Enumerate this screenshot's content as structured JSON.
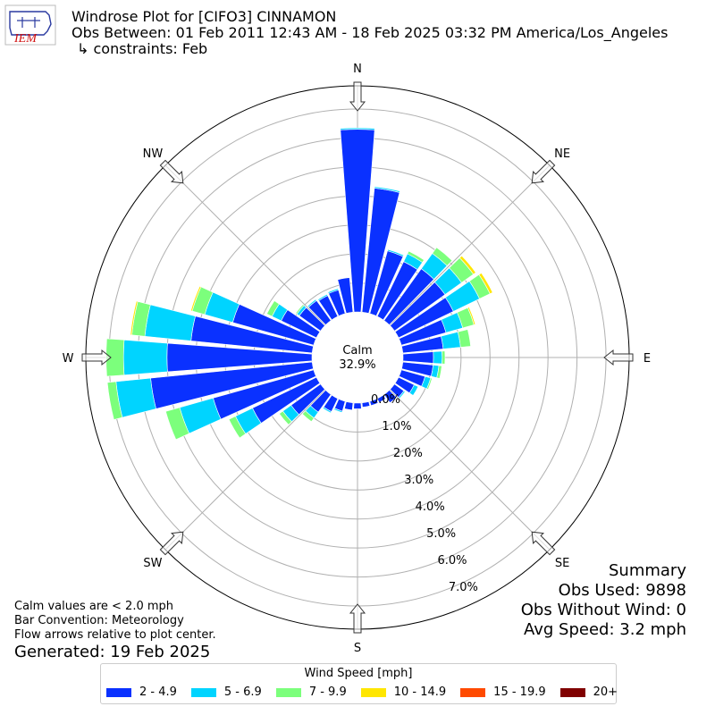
{
  "header": {
    "title": "Windrose Plot for [CIFO3] CINNAMON",
    "obs_between": "Obs Between: 01 Feb 2011 12:43 AM - 18 Feb 2025 03:32 PM America/Los_Angeles",
    "constraints": "↳ constraints: Feb",
    "logo_text": "IEM"
  },
  "calm": {
    "label": "Calm",
    "value": "32.9%"
  },
  "summary": {
    "title": "Summary",
    "obs_used": "Obs Used: 9898",
    "obs_without_wind": "Obs Without Wind: 0",
    "avg_speed": "Avg Speed: 3.2 mph"
  },
  "notes": {
    "calm_note": "Calm values are < 2.0 mph",
    "bar_convention": "Bar Convention: Meteorology",
    "flow_arrows": "Flow arrows relative to plot center.",
    "generated": "Generated: 19 Feb 2025"
  },
  "legend": {
    "title": "Wind Speed [mph]",
    "items": [
      {
        "label": "2 - 4.9",
        "color": "#0a31ff"
      },
      {
        "label": "5 - 6.9",
        "color": "#00d4ff"
      },
      {
        "label": "7 - 9.9",
        "color": "#7cff7c"
      },
      {
        "label": "10 - 14.9",
        "color": "#ffe600"
      },
      {
        "label": "15 - 19.9",
        "color": "#ff4a00"
      },
      {
        "label": "20+",
        "color": "#800000"
      }
    ]
  },
  "chart_data": {
    "type": "windrose",
    "units": "percent",
    "radial_ticks": [
      "0.0%",
      "1.0%",
      "2.0%",
      "3.0%",
      "4.0%",
      "5.0%",
      "6.0%",
      "7.0%"
    ],
    "rmax": 7.8,
    "compass_labels": [
      "N",
      "NE",
      "E",
      "SE",
      "S",
      "SW",
      "W",
      "NW"
    ],
    "bin_colors": [
      "#0a31ff",
      "#00d4ff",
      "#7cff7c",
      "#ffe600",
      "#ff4a00",
      "#800000"
    ],
    "bin_labels": [
      "2 - 4.9",
      "5 - 6.9",
      "7 - 9.9",
      "10 - 14.9",
      "15 - 19.9",
      "20+"
    ],
    "direction_step_deg": 10,
    "directions_deg": [
      0,
      10,
      20,
      30,
      40,
      50,
      60,
      70,
      80,
      90,
      100,
      110,
      120,
      130,
      140,
      150,
      160,
      170,
      180,
      190,
      200,
      210,
      220,
      230,
      240,
      250,
      260,
      270,
      280,
      290,
      300,
      310,
      320,
      330,
      340,
      350
    ],
    "cumulative": [
      [
        6.3,
        6.35,
        6.35,
        6.35,
        6.35,
        6.35
      ],
      [
        4.3,
        4.35,
        4.35,
        4.35,
        4.35,
        4.35
      ],
      [
        2.25,
        2.3,
        2.3,
        2.3,
        2.3,
        2.3
      ],
      [
        2.1,
        2.4,
        2.5,
        2.5,
        2.5,
        2.5
      ],
      [
        2.2,
        2.85,
        3.1,
        3.1,
        3.1,
        3.1
      ],
      [
        2.15,
        2.85,
        3.35,
        3.45,
        3.45,
        3.45
      ],
      [
        2.1,
        3.1,
        3.5,
        3.6,
        3.6,
        3.6
      ],
      [
        1.6,
        2.2,
        2.6,
        2.65,
        2.65,
        2.65
      ],
      [
        1.4,
        2.0,
        2.35,
        2.35,
        2.35,
        2.35
      ],
      [
        1.05,
        1.35,
        1.45,
        1.45,
        1.45,
        1.45
      ],
      [
        1.05,
        1.25,
        1.35,
        1.35,
        1.35,
        1.35
      ],
      [
        0.85,
        1.05,
        1.1,
        1.1,
        1.1,
        1.1
      ],
      [
        0.6,
        0.75,
        0.75,
        0.75,
        0.75,
        0.75
      ],
      [
        0.4,
        0.45,
        0.45,
        0.45,
        0.45,
        0.45
      ],
      [
        0.35,
        0.35,
        0.35,
        0.35,
        0.35,
        0.35
      ],
      [
        0.15,
        0.15,
        0.15,
        0.15,
        0.15,
        0.15
      ],
      [
        0.15,
        0.15,
        0.15,
        0.15,
        0.15,
        0.15
      ],
      [
        0.15,
        0.15,
        0.15,
        0.15,
        0.15,
        0.15
      ],
      [
        0.2,
        0.2,
        0.2,
        0.2,
        0.2,
        0.2
      ],
      [
        0.25,
        0.25,
        0.25,
        0.25,
        0.25,
        0.25
      ],
      [
        0.35,
        0.4,
        0.4,
        0.4,
        0.4,
        0.4
      ],
      [
        0.5,
        0.55,
        0.55,
        0.55,
        0.55,
        0.55
      ],
      [
        0.75,
        1.0,
        1.15,
        1.15,
        1.15,
        1.15
      ],
      [
        1.25,
        1.6,
        1.75,
        1.75,
        1.75,
        1.75
      ],
      [
        2.45,
        3.1,
        3.35,
        3.35,
        3.35,
        3.35
      ],
      [
        3.6,
        4.8,
        5.3,
        5.3,
        5.3,
        5.3
      ],
      [
        5.6,
        6.8,
        7.1,
        7.1,
        7.1,
        7.1
      ],
      [
        5.0,
        6.5,
        7.1,
        7.1,
        7.1,
        7.1
      ],
      [
        4.2,
        5.8,
        6.25,
        6.3,
        6.3,
        6.3
      ],
      [
        2.9,
        3.9,
        4.35,
        4.4,
        4.4,
        4.4
      ],
      [
        1.35,
        1.7,
        1.9,
        1.9,
        1.9,
        1.9
      ],
      [
        0.9,
        1.0,
        1.05,
        1.05,
        1.05,
        1.05
      ],
      [
        0.85,
        0.9,
        0.9,
        0.9,
        0.9,
        0.9
      ],
      [
        0.8,
        0.85,
        0.85,
        0.85,
        0.85,
        0.85
      ],
      [
        0.85,
        0.9,
        0.9,
        0.9,
        0.9,
        0.9
      ],
      [
        1.2,
        1.2,
        1.2,
        1.2,
        1.2,
        1.2
      ]
    ]
  }
}
